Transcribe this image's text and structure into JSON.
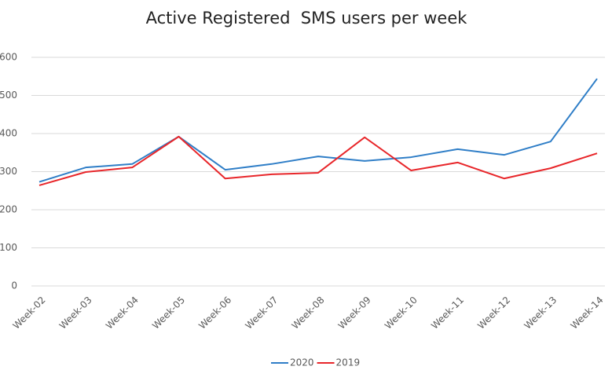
{
  "chart_data": {
    "type": "line",
    "title": "Active Registered  SMS users per week",
    "categories": [
      "Week-02",
      "Week-03",
      "Week-04",
      "Week-05",
      "Week-06",
      "Week-07",
      "Week-08",
      "Week-09",
      "Week-10",
      "Week-11",
      "Week-12",
      "Week-13",
      "Week-14"
    ],
    "series": [
      {
        "name": "2020",
        "color": "#2f7ec7",
        "values": [
          273,
          311,
          320,
          392,
          305,
          320,
          340,
          328,
          338,
          359,
          344,
          379,
          544
        ]
      },
      {
        "name": "2019",
        "color": "#e8262a",
        "values": [
          264,
          299,
          311,
          392,
          282,
          293,
          297,
          390,
          303,
          324,
          282,
          309,
          348
        ]
      }
    ],
    "ylim": [
      0,
      600
    ],
    "yticks": [
      0,
      100,
      200,
      300,
      400,
      500,
      600
    ],
    "grid": true,
    "legend": "bottom"
  }
}
